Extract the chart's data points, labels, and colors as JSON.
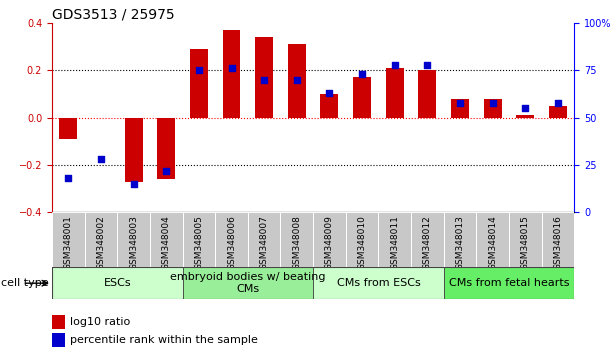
{
  "title": "GDS3513 / 25975",
  "samples": [
    "GSM348001",
    "GSM348002",
    "GSM348003",
    "GSM348004",
    "GSM348005",
    "GSM348006",
    "GSM348007",
    "GSM348008",
    "GSM348009",
    "GSM348010",
    "GSM348011",
    "GSM348012",
    "GSM348013",
    "GSM348014",
    "GSM348015",
    "GSM348016"
  ],
  "log10_ratio": [
    -0.09,
    0.0,
    -0.27,
    -0.26,
    0.29,
    0.37,
    0.34,
    0.31,
    0.1,
    0.17,
    0.21,
    0.2,
    0.08,
    0.08,
    0.01,
    0.05
  ],
  "percentile_rank": [
    18,
    28,
    15,
    22,
    75,
    76,
    70,
    70,
    63,
    73,
    78,
    78,
    58,
    58,
    55,
    58
  ],
  "cell_groups": [
    {
      "label": "ESCs",
      "start": 0,
      "end": 3,
      "color": "#ccffcc"
    },
    {
      "label": "embryoid bodies w/ beating\nCMs",
      "start": 4,
      "end": 7,
      "color": "#99ee99"
    },
    {
      "label": "CMs from ESCs",
      "start": 8,
      "end": 11,
      "color": "#ccffcc"
    },
    {
      "label": "CMs from fetal hearts",
      "start": 12,
      "end": 15,
      "color": "#66ee66"
    }
  ],
  "bar_color": "#cc0000",
  "dot_color": "#0000cc",
  "left_ylim": [
    -0.4,
    0.4
  ],
  "right_ylim": [
    0,
    100
  ],
  "left_yticks": [
    -0.4,
    -0.2,
    0.0,
    0.2,
    0.4
  ],
  "right_yticks": [
    0,
    25,
    50,
    75,
    100
  ],
  "right_yticklabels": [
    "0",
    "25",
    "50",
    "75",
    "100%"
  ],
  "title_fontsize": 10,
  "tick_fontsize": 7,
  "legend_fontsize": 8,
  "cell_type_fontsize": 8,
  "group_label_fontsize": 8,
  "sample_label_fontsize": 6.5,
  "gray_box_color": "#c8c8c8",
  "bar_width": 0.55
}
